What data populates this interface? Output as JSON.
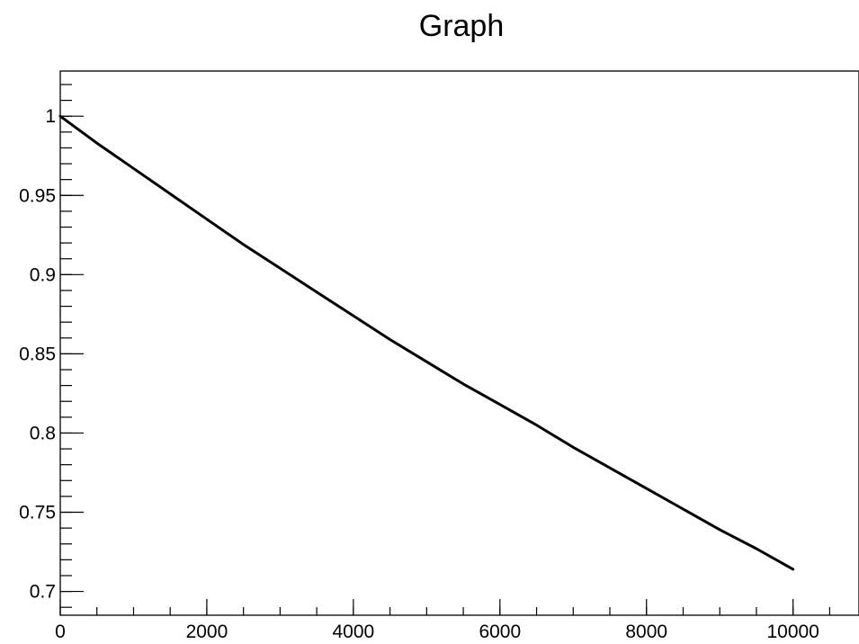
{
  "chart_data": {
    "type": "line",
    "title": "Graph",
    "xlabel": "",
    "ylabel": "",
    "xlim": [
      0,
      10900
    ],
    "ylim": [
      0.685,
      1.0285
    ],
    "x_ticks": [
      0,
      2000,
      4000,
      6000,
      8000,
      10000
    ],
    "x_tick_labels": [
      "0",
      "2000",
      "4000",
      "6000",
      "8000",
      "10000"
    ],
    "y_ticks": [
      0.7,
      0.75,
      0.8,
      0.85,
      0.9,
      0.95,
      1.0
    ],
    "y_tick_labels": [
      "0.7",
      "0.75",
      "0.8",
      "0.85",
      "0.9",
      "0.95",
      "1"
    ],
    "x_minor_step": 500,
    "y_minor_step": 0.01,
    "grid": false,
    "legend": "none",
    "line_color": "#000000",
    "series": [
      {
        "x": [
          0,
          500,
          1000,
          1500,
          2000,
          2500,
          3000,
          3500,
          4000,
          4500,
          5000,
          5500,
          6000,
          6500,
          7000,
          7500,
          8000,
          8500,
          9000,
          9500,
          10000
        ],
        "values": [
          1.0,
          0.983,
          0.967,
          0.951,
          0.935,
          0.919,
          0.904,
          0.889,
          0.874,
          0.859,
          0.845,
          0.831,
          0.818,
          0.805,
          0.791,
          0.778,
          0.765,
          0.752,
          0.739,
          0.727,
          0.714
        ]
      }
    ]
  }
}
